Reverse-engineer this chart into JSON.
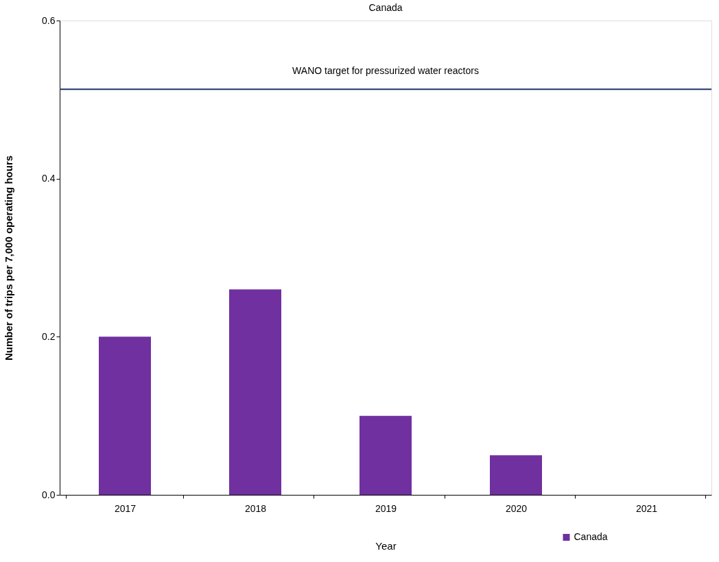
{
  "chart_data": {
    "type": "bar",
    "title": "Canada",
    "xlabel": "Year",
    "ylabel": "Number of trips per 7,000 operating hours",
    "categories": [
      "2017",
      "2018",
      "2019",
      "2020",
      "2021"
    ],
    "series": [
      {
        "name": "Canada",
        "color": "#7030a0",
        "values": [
          0.2,
          0.26,
          0.1,
          0.05,
          0
        ]
      }
    ],
    "ylim": [
      0,
      0.6
    ],
    "yticks": [
      {
        "value": 0,
        "label": "0.0"
      },
      0.2,
      0.4,
      0.6
    ],
    "ref_lines": [
      {
        "axis": "y",
        "value": 0.513,
        "label": "WANO target for pressurized water reactors",
        "color": "#1f2f6b"
      }
    ],
    "legend": "bottom right",
    "grid": false
  }
}
